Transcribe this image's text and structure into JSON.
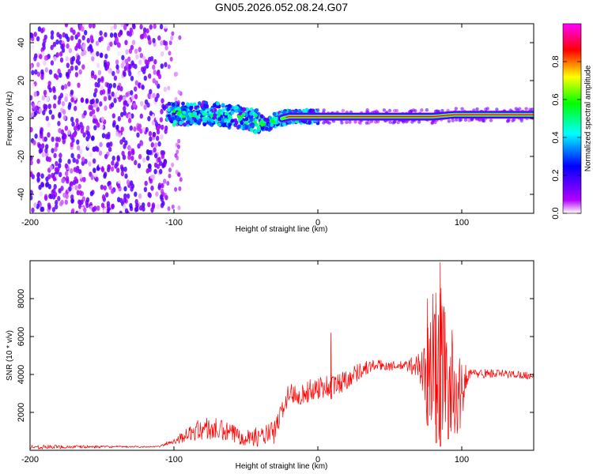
{
  "figure_title": "GN05.2026.052.08.24.G07",
  "chart_data": [
    {
      "type": "heatmap",
      "name": "spectrogram",
      "title": "GN05.2026.052.08.24.G07",
      "xlabel": "Height of straight line (km)",
      "ylabel": "Frequency (Hz)",
      "xlim": [
        -200,
        150
      ],
      "ylim": [
        -50,
        50
      ],
      "xticks": [
        -200,
        -100,
        0,
        100
      ],
      "yticks": [
        -40,
        -20,
        0,
        20,
        40
      ],
      "colorbar": {
        "label": "Normalized spectral amplitude",
        "range": [
          0,
          1
        ],
        "ticks": [
          "0.0",
          "0.2",
          "0.4",
          "0.6",
          "0.8"
        ],
        "tick_values": [
          0.0,
          0.2,
          0.4,
          0.6,
          0.8
        ],
        "colormap": [
          "#ffffff",
          "#b000ff",
          "#0000ff",
          "#00ffff",
          "#00ff00",
          "#ffff00",
          "#ff0000",
          "#ff00ff"
        ]
      },
      "regions": [
        {
          "x_range": [
            -200,
            -105
          ],
          "y_range": [
            -50,
            50
          ],
          "description": "scattered low-amplitude noise",
          "amplitude_range": [
            0.0,
            0.2
          ]
        },
        {
          "x_range": [
            -105,
            0
          ],
          "y_range": [
            -12,
            10
          ],
          "description": "broad signal band",
          "amplitude_range": [
            0.1,
            0.5
          ]
        },
        {
          "x_range": [
            -25,
            150
          ],
          "y_range": [
            -2,
            3
          ],
          "description": "narrow strong tone near 0 Hz",
          "amplitude_range": [
            0.6,
            1.0
          ]
        }
      ],
      "ridge": {
        "x": [
          -105,
          -90,
          -80,
          -70,
          -60,
          -50,
          -45,
          -40,
          -35,
          -30,
          -25,
          -20,
          0,
          20,
          40,
          60,
          80,
          95,
          100,
          150
        ],
        "freq_hz": [
          3,
          2,
          3,
          2,
          1,
          0,
          -1,
          -2,
          -3,
          -1,
          0,
          1,
          1,
          1,
          1,
          1,
          1,
          2,
          2,
          2
        ]
      }
    },
    {
      "type": "line",
      "name": "snr",
      "xlabel": "Height of straight line (km)",
      "ylabel": "SNR (10 * v/v)",
      "xlim": [
        -200,
        150
      ],
      "ylim": [
        0,
        10000
      ],
      "xticks": [
        -200,
        -100,
        0,
        100
      ],
      "yticks": [
        2000,
        4000,
        6000,
        8000
      ],
      "color": "#ff0000",
      "envelope": {
        "x": [
          -200,
          -150,
          -120,
          -110,
          -100,
          -90,
          -80,
          -70,
          -60,
          -50,
          -40,
          -30,
          -25,
          -20,
          -10,
          0,
          10,
          20,
          30,
          40,
          50,
          60,
          70,
          75,
          80,
          85,
          90,
          95,
          100,
          103,
          105,
          120,
          140,
          150
        ],
        "low": [
          50,
          120,
          150,
          160,
          300,
          500,
          500,
          450,
          350,
          250,
          200,
          300,
          1600,
          2400,
          2400,
          2700,
          2700,
          3200,
          3800,
          4200,
          4200,
          4200,
          3800,
          1500,
          500,
          200,
          300,
          700,
          1000,
          3200,
          3800,
          3800,
          3800,
          3700
        ],
        "high": [
          300,
          250,
          220,
          230,
          700,
          1200,
          1800,
          1700,
          1400,
          1200,
          1200,
          1600,
          2600,
          3600,
          3500,
          4000,
          4000,
          4300,
          4700,
          4800,
          4700,
          4700,
          5200,
          6000,
          8500,
          9500,
          7000,
          6000,
          4500,
          4600,
          4300,
          4300,
          4200,
          4100
        ]
      },
      "spikes": [
        {
          "x": 9,
          "y": 6200
        },
        {
          "x": 85,
          "y": 9900
        },
        {
          "x": 76,
          "y": 8000
        },
        {
          "x": 82,
          "y": 8300
        }
      ]
    }
  ]
}
